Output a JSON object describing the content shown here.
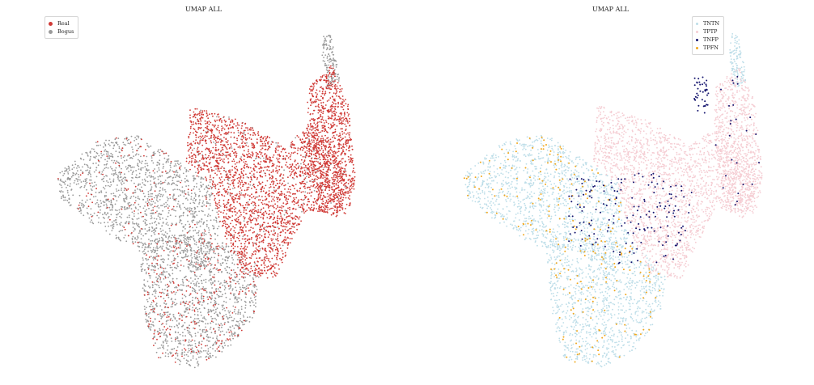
{
  "chart_data": [
    {
      "type": "scatter",
      "title": "UMAP ALL",
      "xlabel": "",
      "ylabel": "",
      "grid": false,
      "axes_visible": false,
      "legend_position": "top-left",
      "series": [
        {
          "name": "Real",
          "color": "#d03a36"
        },
        {
          "name": "Bogus",
          "color": "#9a9a9a"
        }
      ]
    },
    {
      "type": "scatter",
      "title": "UMAP ALL",
      "xlabel": "",
      "ylabel": "",
      "grid": false,
      "axes_visible": false,
      "legend_position": "top-right",
      "series": [
        {
          "name": "TNTN",
          "color": "#bcdde8"
        },
        {
          "name": "TPTP",
          "color": "#f5cdd3"
        },
        {
          "name": "TNFP",
          "color": "#14146e"
        },
        {
          "name": "TPFN",
          "color": "#f0a81e"
        }
      ]
    }
  ]
}
